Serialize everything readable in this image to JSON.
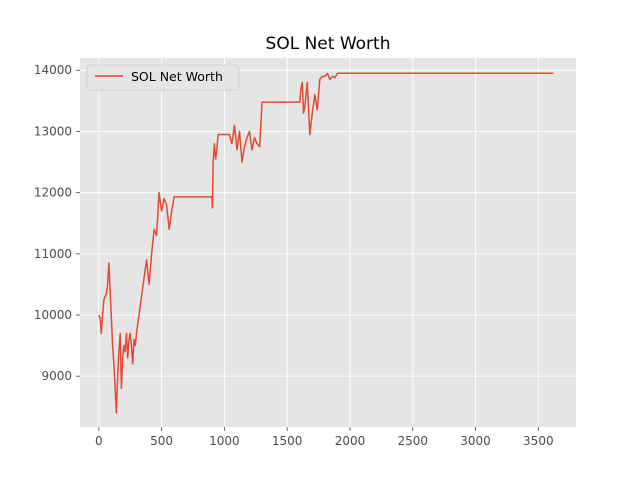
{
  "chart_data": {
    "type": "line",
    "title": "SOL Net Worth",
    "xlabel": "",
    "ylabel": "",
    "xlim": [
      -150,
      3800
    ],
    "ylim": [
      8170,
      14200
    ],
    "xticks": [
      0,
      500,
      1000,
      1500,
      2000,
      2500,
      3000,
      3500
    ],
    "yticks": [
      9000,
      10000,
      11000,
      12000,
      13000,
      14000
    ],
    "grid": true,
    "legend_position": "upper-left",
    "style": "ggplot",
    "series": [
      {
        "name": "SOL Net Worth",
        "color": "#e24a33",
        "x": [
          0,
          10,
          20,
          30,
          40,
          50,
          60,
          70,
          80,
          90,
          100,
          110,
          120,
          130,
          140,
          150,
          160,
          170,
          180,
          190,
          200,
          210,
          220,
          230,
          240,
          250,
          260,
          270,
          280,
          290,
          300,
          320,
          340,
          360,
          380,
          400,
          420,
          440,
          460,
          480,
          500,
          520,
          540,
          560,
          580,
          600,
          620,
          640,
          660,
          680,
          700,
          900,
          905,
          910,
          920,
          930,
          940,
          950,
          1000,
          1040,
          1060,
          1080,
          1100,
          1120,
          1140,
          1160,
          1180,
          1200,
          1220,
          1240,
          1260,
          1280,
          1300,
          1320,
          1340,
          1600,
          1610,
          1620,
          1630,
          1640,
          1660,
          1680,
          1700,
          1720,
          1740,
          1760,
          1780,
          1800,
          1820,
          1840,
          1860,
          1880,
          1900,
          1920,
          1940,
          1960,
          1980,
          2000,
          3620
        ],
        "values": [
          10000,
          9950,
          9700,
          10000,
          10250,
          10300,
          10350,
          10500,
          10850,
          10400,
          9950,
          9500,
          9200,
          8800,
          8400,
          9000,
          9400,
          9700,
          8800,
          9300,
          9500,
          9400,
          9700,
          9300,
          9600,
          9700,
          9500,
          9200,
          9600,
          9500,
          9700,
          10000,
          10300,
          10600,
          10900,
          10500,
          11000,
          11400,
          11300,
          12000,
          11700,
          11900,
          11800,
          11400,
          11700,
          11930,
          11930,
          11930,
          11930,
          11930,
          11930,
          11930,
          11750,
          12500,
          12800,
          12550,
          12700,
          12950,
          12950,
          12950,
          12800,
          13100,
          12700,
          13000,
          12500,
          12750,
          12900,
          13000,
          12700,
          12900,
          12800,
          12750,
          13480,
          13480,
          13480,
          13480,
          13700,
          13800,
          13300,
          13400,
          13800,
          12950,
          13300,
          13600,
          13350,
          13850,
          13900,
          13900,
          13950,
          13850,
          13900,
          13880,
          13950,
          13950,
          13950,
          13950,
          13950,
          13950,
          13950
        ]
      }
    ]
  }
}
